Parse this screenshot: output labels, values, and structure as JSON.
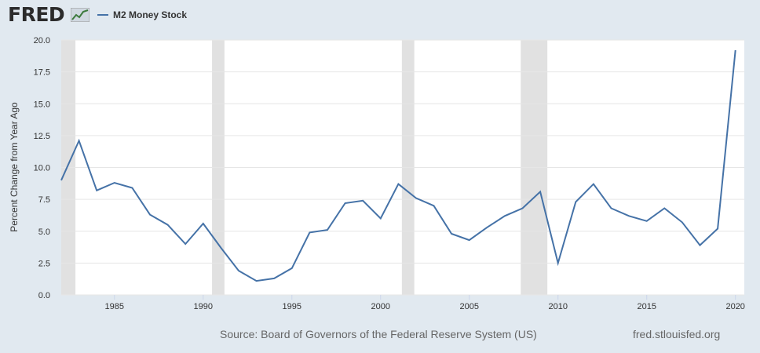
{
  "brand": {
    "logo_text": "FRED"
  },
  "footer": {
    "source": "Source: Board of Governors of the Federal Reserve System (US)",
    "url": "fred.stlouisfed.org"
  },
  "colors": {
    "series": "#4572a7",
    "recession": "#e1e1e1",
    "background": "#e1e9f0",
    "plot_bg": "#ffffff"
  },
  "chart_data": {
    "type": "line",
    "title": "",
    "xlabel": "",
    "ylabel": "Percent Change from Year Ago",
    "ylim": [
      0,
      20
    ],
    "xlim": [
      1982,
      2020.5
    ],
    "y_ticks": [
      "0.0",
      "2.5",
      "5.0",
      "7.5",
      "10.0",
      "12.5",
      "15.0",
      "17.5",
      "20.0"
    ],
    "x_ticks": [
      "1985",
      "1990",
      "1995",
      "2000",
      "2005",
      "2010",
      "2015",
      "2020"
    ],
    "grid": true,
    "legend_position": "top-left",
    "recessions": [
      [
        1982.0,
        1982.8
      ],
      [
        1990.5,
        1991.2
      ],
      [
        2001.2,
        2001.9
      ],
      [
        2007.9,
        2009.4
      ]
    ],
    "series": [
      {
        "name": "M2 Money Stock",
        "x": [
          1982,
          1983,
          1984,
          1985,
          1986,
          1987,
          1988,
          1989,
          1990,
          1991,
          1992,
          1993,
          1994,
          1995,
          1996,
          1997,
          1998,
          1999,
          2000,
          2001,
          2002,
          2003,
          2004,
          2005,
          2006,
          2007,
          2008,
          2009,
          2010,
          2011,
          2012,
          2013,
          2014,
          2015,
          2016,
          2017,
          2018,
          2019,
          2020
        ],
        "values": [
          9.0,
          12.1,
          8.2,
          8.8,
          8.4,
          6.3,
          5.5,
          4.0,
          5.6,
          3.7,
          1.9,
          1.1,
          1.3,
          2.1,
          4.9,
          5.1,
          7.2,
          7.4,
          6.0,
          8.7,
          7.6,
          7.0,
          4.8,
          4.3,
          5.3,
          6.2,
          6.8,
          8.1,
          2.5,
          7.3,
          8.7,
          6.8,
          6.2,
          5.8,
          6.8,
          5.7,
          3.9,
          5.2,
          19.2
        ]
      }
    ]
  }
}
